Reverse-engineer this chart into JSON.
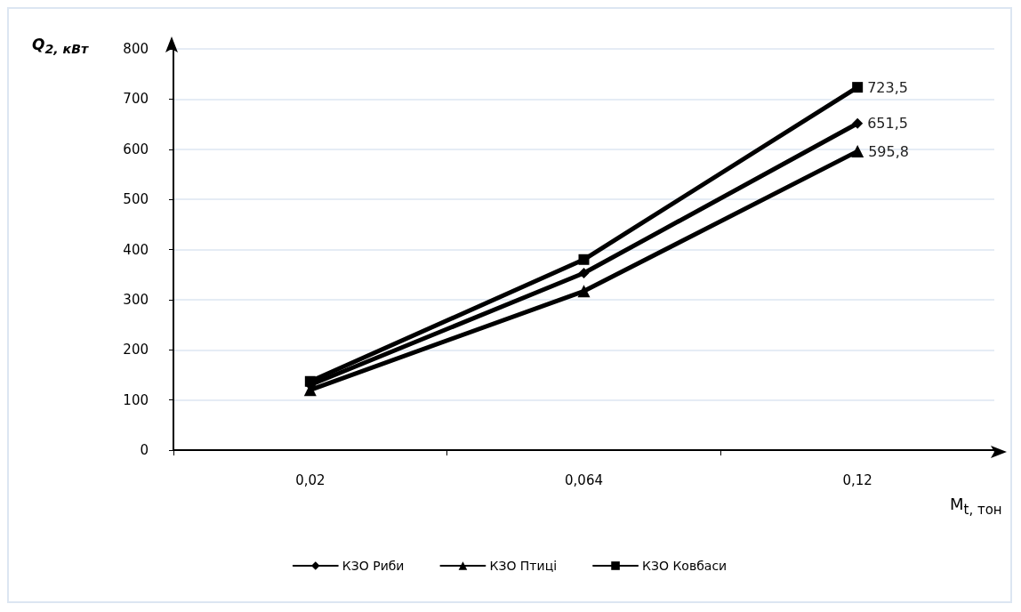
{
  "chart_data": {
    "type": "line",
    "ylabel": "Q$_{2, кВт}$",
    "xlabel": "M$_{t, тон}$",
    "categories": [
      "0,02",
      "0,064",
      "0,12"
    ],
    "series": [
      {
        "name": "КЗО Риби",
        "color": "#000000",
        "marker": "diamond",
        "values": [
          130,
          353,
          651.5
        ],
        "value_labels": [
          null,
          null,
          "651,5"
        ]
      },
      {
        "name": "КЗО Птиці",
        "color": "#000000",
        "marker": "triangle",
        "values": [
          120,
          317,
          595.8
        ],
        "value_labels": [
          null,
          null,
          "595,8"
        ]
      },
      {
        "name": "КЗО Ковбаси",
        "color": "#000000",
        "marker": "square",
        "values": [
          137,
          380,
          723.5
        ],
        "value_labels": [
          null,
          null,
          "723,5"
        ]
      }
    ],
    "ylim": [
      0,
      800
    ],
    "yticks": [
      0,
      100,
      200,
      300,
      400,
      500,
      600,
      700,
      800
    ],
    "grid": "y",
    "legend": "bottom",
    "line_style": "solid"
  }
}
